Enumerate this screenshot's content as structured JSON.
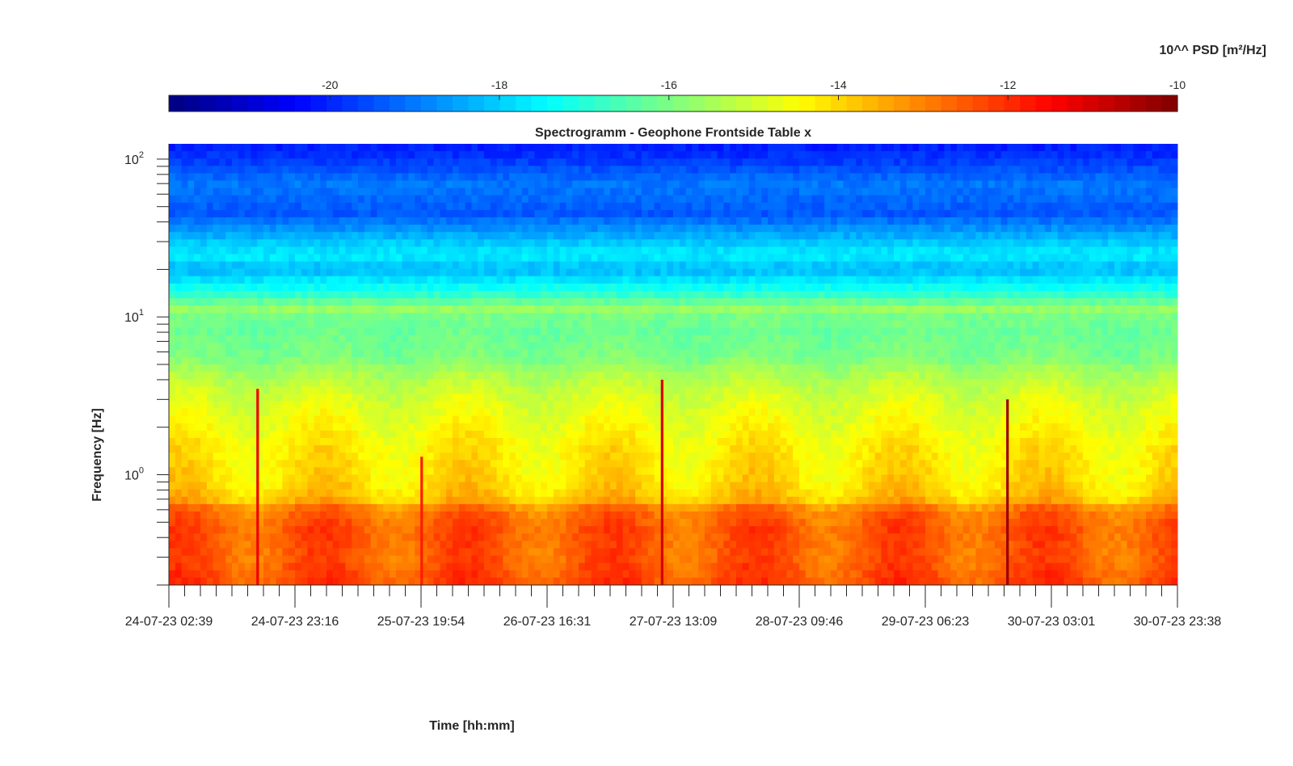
{
  "chart_data": {
    "type": "heatmap",
    "title": "Spectrogramm - Geophone Frontside Table x",
    "xlabel": "Time [hh:mm]",
    "ylabel": "Frequency [Hz]",
    "colorbar": {
      "label": "10^^ PSD [m²/Hz]",
      "colormap": "jet",
      "range": [
        -21.9,
        -10
      ],
      "ticks": [
        -20,
        -18,
        -16,
        -14,
        -12,
        -10
      ],
      "tick_labels": [
        "-20",
        "-18",
        "-16",
        "-14",
        "-12",
        "-10"
      ],
      "position": "top"
    },
    "x_axis": {
      "unit": "date-time",
      "range": [
        "24-07-23 02:39",
        "30-07-23 23:38"
      ],
      "tick_labels": [
        "24-07-23 02:39",
        "24-07-23 23:16",
        "25-07-23 19:54",
        "26-07-23 16:31",
        "27-07-23 13:09",
        "28-07-23 09:46",
        "29-07-23 06:23",
        "30-07-23 03:01",
        "30-07-23 23:38"
      ],
      "minor_ticks_per_interval": 8
    },
    "y_axis": {
      "scale": "log",
      "range": [
        0.2,
        125
      ],
      "ticks": [
        1,
        10,
        100
      ],
      "tick_labels": [
        {
          "base": "10",
          "exp": "0"
        },
        {
          "base": "10",
          "exp": "1"
        },
        {
          "base": "10",
          "exp": "2"
        }
      ]
    },
    "grid": false,
    "psd_profile_by_frequency": {
      "frequency_hz": [
        0.2,
        0.3,
        0.45,
        0.6,
        0.7,
        0.9,
        1.5,
        3.0,
        4.5,
        5.5,
        8.0,
        11.0,
        11.8,
        12.5,
        15.0,
        20.0,
        24.5,
        30.0,
        45.0,
        70.0,
        100.0,
        125.0
      ],
      "log10_psd": [
        -12.3,
        -12.6,
        -12.5,
        -12.8,
        -13.8,
        -14.1,
        -14.3,
        -14.9,
        -15.5,
        -16.0,
        -16.2,
        -16.0,
        -14.6,
        -16.4,
        -17.2,
        -18.3,
        -17.6,
        -18.1,
        -19.4,
        -19.0,
        -19.8,
        -20.1
      ]
    },
    "transient_events": [
      {
        "time": "24-07-23 17:10",
        "max_frequency_hz": 3.5,
        "peak_log10_psd": -11.3
      },
      {
        "time": "25-07-23 20:00",
        "max_frequency_hz": 1.3,
        "peak_log10_psd": -11.8
      },
      {
        "time": "27-07-23 11:20",
        "max_frequency_hz": 4.0,
        "peak_log10_psd": -11.0
      },
      {
        "time": "29-07-23 19:50",
        "max_frequency_hz": 3.0,
        "peak_log10_psd": -10.3
      }
    ]
  }
}
